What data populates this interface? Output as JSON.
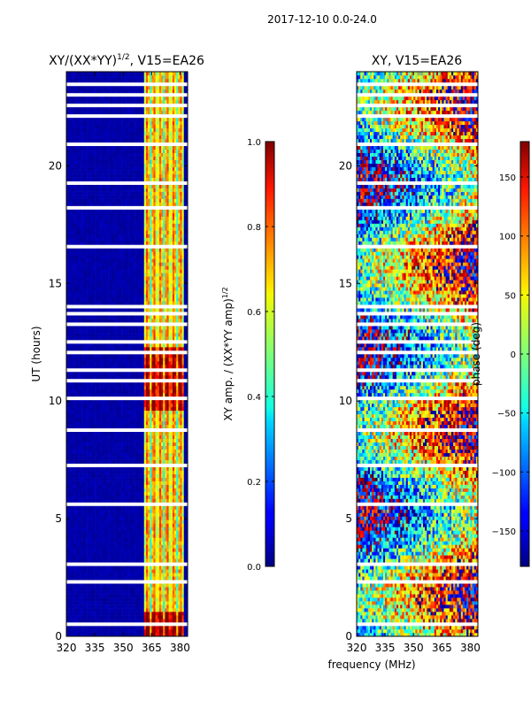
{
  "figure": {
    "suptitle": "2017-12-10 0.0-24.0",
    "shared_xlabel": "frequency (MHz)"
  },
  "chart_data": [
    {
      "type": "heatmap",
      "title": "XY/(XX*YY)",
      "title_exponent": "1/2",
      "title_suffix": ", V15=EA26",
      "xlabel": "",
      "ylabel": "UT (hours)",
      "xlim": [
        320,
        384
      ],
      "ylim": [
        0,
        24
      ],
      "xticks": [
        320,
        335,
        350,
        365,
        380
      ],
      "yticks": [
        0,
        5,
        10,
        15,
        20
      ],
      "colorbar": {
        "label": "XY amp. / (XX*YY amp)",
        "label_exponent": "1/2",
        "range": [
          0.0,
          1.0
        ],
        "ticks": [
          "0.0",
          "0.2",
          "0.4",
          "0.6",
          "0.8",
          "1.0"
        ]
      },
      "colormap": "jet",
      "active_band_mhz": [
        361,
        382
      ],
      "flagged_ut_hours": [
        0.5,
        1.2,
        2.1,
        2.3,
        3.1,
        4.2,
        5.6,
        6.9,
        7.3,
        7.5,
        8.8,
        9.6,
        10.1,
        10.5,
        10.9,
        11.3,
        11.7,
        12.1,
        12.5,
        12.9,
        13.3,
        13.7,
        14.0,
        16.6,
        17.7,
        18.0,
        18.2,
        19.3,
        20.9,
        21.9,
        22.1,
        22.6,
        23.0,
        23.5
      ]
    },
    {
      "type": "heatmap",
      "title": "XY, V15=EA26",
      "xlabel": "",
      "ylabel": "",
      "xlim": [
        320,
        384
      ],
      "ylim": [
        0,
        24
      ],
      "xticks": [
        320,
        335,
        350,
        365,
        380
      ],
      "yticks": [
        0,
        5,
        10,
        15,
        20
      ],
      "colorbar": {
        "label": "phase (deg)",
        "range": [
          -180,
          180
        ],
        "ticks": [
          "−150",
          "−100",
          "−50",
          "0",
          "50",
          "100",
          "150"
        ]
      },
      "colormap": "jet",
      "flagged_ut_hours": [
        0.5,
        1.2,
        2.1,
        2.3,
        3.1,
        4.2,
        5.6,
        6.9,
        7.3,
        7.5,
        8.8,
        9.6,
        10.1,
        10.5,
        10.9,
        11.3,
        11.7,
        12.1,
        12.5,
        12.9,
        13.3,
        13.7,
        14.0,
        16.6,
        17.7,
        18.0,
        18.2,
        19.3,
        20.9,
        21.9,
        22.1,
        22.6,
        23.0,
        23.5
      ]
    }
  ]
}
